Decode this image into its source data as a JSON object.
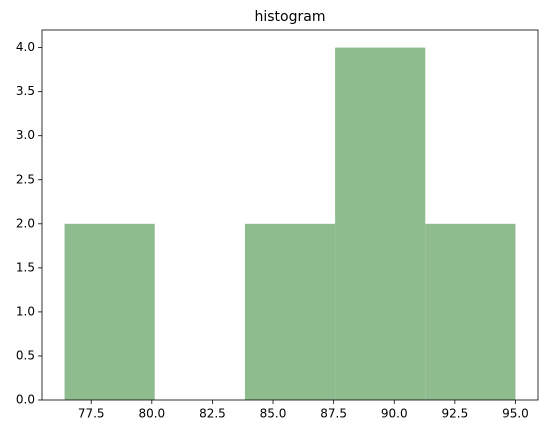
{
  "chart_data": {
    "type": "histogram",
    "title": "histogram",
    "bins": [
      76.4,
      80.12,
      83.84,
      87.56,
      91.28,
      95.0
    ],
    "values": [
      2,
      0,
      2,
      4,
      2
    ],
    "color": "#8fbc8f",
    "xlim": [
      75.47,
      95.93
    ],
    "xticks": [
      77.5,
      {
        "value": 80,
        "label": "80.0"
      },
      82.5,
      {
        "value": 85,
        "label": "85.0"
      },
      87.5,
      {
        "value": 90,
        "label": "90.0"
      },
      92.5,
      {
        "value": 95,
        "label": "95.0"
      }
    ],
    "ylim": [
      0,
      4.2
    ],
    "yticks": [
      {
        "value": 0,
        "label": "0.0"
      },
      0.5,
      {
        "value": 1,
        "label": "1.0"
      },
      1.5,
      {
        "value": 2,
        "label": "2.0"
      },
      2.5,
      {
        "value": 3,
        "label": "3.0"
      },
      3.5,
      {
        "value": 4,
        "label": "4.0"
      }
    ]
  }
}
